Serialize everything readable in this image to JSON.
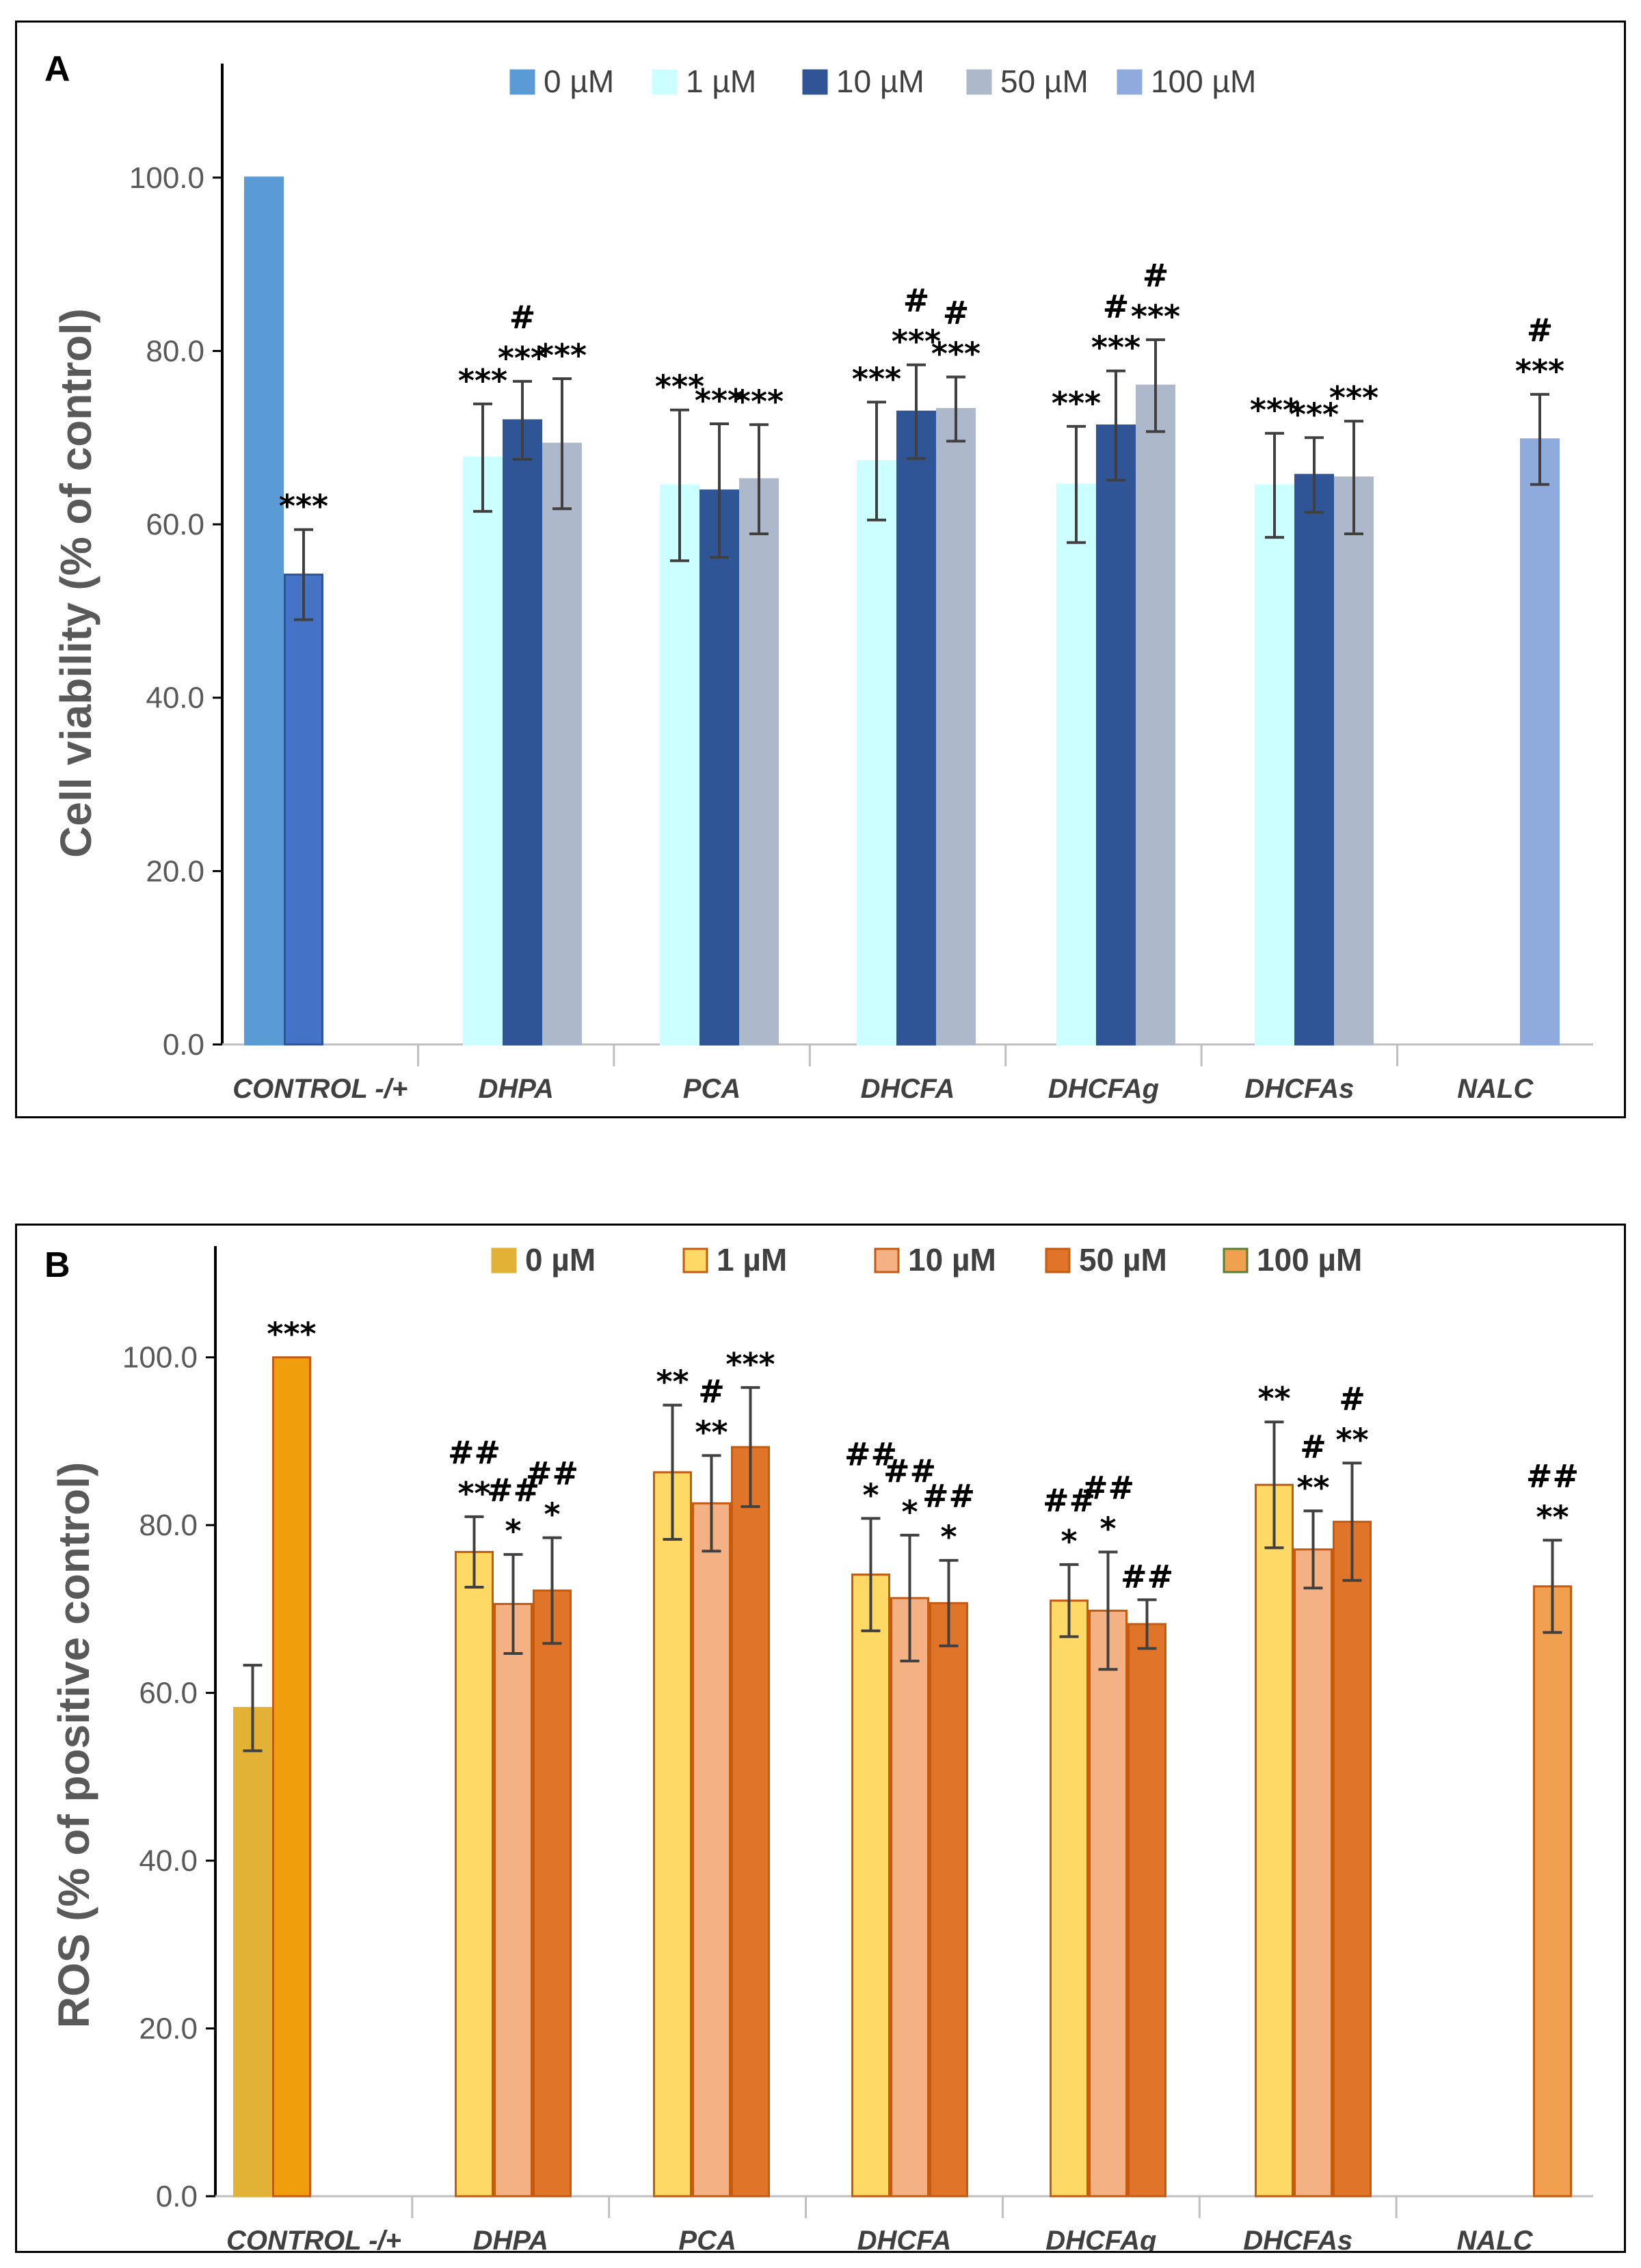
{
  "chart_data": [
    {
      "panel_label": "A",
      "type": "bar",
      "ylabel": "Cell viability (% of control)",
      "xlabel": "",
      "ylim": [
        0,
        110
      ],
      "yticks": [
        "0.0",
        "20.0",
        "40.0",
        "60.0",
        "80.0",
        "100.0"
      ],
      "legend": {
        "position": "top",
        "entries": [
          {
            "name": "0 µM",
            "color": "#5b9bd5"
          },
          {
            "name": "1 µM",
            "color": "#ccffff"
          },
          {
            "name": "10 µM",
            "color": "#2f5597"
          },
          {
            "name": "50 µM",
            "color": "#adb9ca"
          },
          {
            "name": "100 µM",
            "color": "#8faadc"
          }
        ]
      },
      "categories": [
        "CONTROL -/+",
        "DHPA",
        "PCA",
        "DHCFA",
        "DHCFAg",
        "DHCFAs",
        "NALC"
      ],
      "bars": [
        {
          "category": 0,
          "slot": 0,
          "value": 100.0,
          "error": 0,
          "fill": "#5b9bd5",
          "stroke": "#5b9bd5",
          "labels": []
        },
        {
          "category": 0,
          "slot": 1,
          "value": 54.2,
          "error": 5.2,
          "fill": "#4472c4",
          "stroke": "#2f5597",
          "labels": [
            "***"
          ]
        },
        {
          "category": 1,
          "slot": 0,
          "value": 67.7,
          "error": 6.2,
          "fill": "#ccffff",
          "stroke": "#ccffff",
          "labels": [
            "***"
          ]
        },
        {
          "category": 1,
          "slot": 1,
          "value": 72.0,
          "error": 4.5,
          "fill": "#2f5597",
          "stroke": "#2f5597",
          "labels": [
            "***",
            "#"
          ]
        },
        {
          "category": 1,
          "slot": 2,
          "value": 69.3,
          "error": 7.5,
          "fill": "#adb9ca",
          "stroke": "#adb9ca",
          "labels": [
            "***"
          ]
        },
        {
          "category": 2,
          "slot": 0,
          "value": 64.5,
          "error": 8.7,
          "fill": "#ccffff",
          "stroke": "#ccffff",
          "labels": [
            "***"
          ]
        },
        {
          "category": 2,
          "slot": 1,
          "value": 63.9,
          "error": 7.7,
          "fill": "#2f5597",
          "stroke": "#2f5597",
          "labels": [
            "***"
          ]
        },
        {
          "category": 2,
          "slot": 2,
          "value": 65.2,
          "error": 6.3,
          "fill": "#adb9ca",
          "stroke": "#adb9ca",
          "labels": [
            "***"
          ]
        },
        {
          "category": 3,
          "slot": 0,
          "value": 67.3,
          "error": 6.8,
          "fill": "#ccffff",
          "stroke": "#ccffff",
          "labels": [
            "***"
          ]
        },
        {
          "category": 3,
          "slot": 1,
          "value": 73.0,
          "error": 5.4,
          "fill": "#2f5597",
          "stroke": "#2f5597",
          "labels": [
            "***",
            "#"
          ]
        },
        {
          "category": 3,
          "slot": 2,
          "value": 73.3,
          "error": 3.7,
          "fill": "#adb9ca",
          "stroke": "#adb9ca",
          "labels": [
            "***",
            "#"
          ]
        },
        {
          "category": 4,
          "slot": 0,
          "value": 64.6,
          "error": 6.7,
          "fill": "#ccffff",
          "stroke": "#ccffff",
          "labels": [
            "***"
          ]
        },
        {
          "category": 4,
          "slot": 1,
          "value": 71.4,
          "error": 6.3,
          "fill": "#2f5597",
          "stroke": "#2f5597",
          "labels": [
            "***",
            "#"
          ]
        },
        {
          "category": 4,
          "slot": 2,
          "value": 76.0,
          "error": 5.3,
          "fill": "#adb9ca",
          "stroke": "#adb9ca",
          "labels": [
            "***",
            "#"
          ]
        },
        {
          "category": 5,
          "slot": 0,
          "value": 64.5,
          "error": 6.0,
          "fill": "#ccffff",
          "stroke": "#ccffff",
          "labels": [
            "***"
          ]
        },
        {
          "category": 5,
          "slot": 1,
          "value": 65.7,
          "error": 4.3,
          "fill": "#2f5597",
          "stroke": "#2f5597",
          "labels": [
            "***"
          ]
        },
        {
          "category": 5,
          "slot": 2,
          "value": 65.4,
          "error": 6.5,
          "fill": "#adb9ca",
          "stroke": "#adb9ca",
          "labels": [
            "***"
          ]
        },
        {
          "category": 6,
          "slot": 1,
          "value": 69.8,
          "error": 5.2,
          "fill": "#8faadc",
          "stroke": "#8faadc",
          "labels": [
            "***",
            "#"
          ]
        }
      ]
    },
    {
      "panel_label": "B",
      "type": "bar",
      "ylabel": "ROS (% of positive  control)",
      "xlabel": "",
      "ylim": [
        0,
        110
      ],
      "yticks": [
        "0.0",
        "20.0",
        "40.0",
        "60.0",
        "80.0",
        "100.0"
      ],
      "legend": {
        "position": "top",
        "entries": [
          {
            "name": "0 µM",
            "color": "#e2b236",
            "stroke": "#e2b236"
          },
          {
            "name": "1 µM",
            "color": "#ffd966",
            "stroke": "#c55a11"
          },
          {
            "name": "10 µM",
            "color": "#f4b183",
            "stroke": "#c55a11"
          },
          {
            "name": "50 µM",
            "color": "#e07428",
            "stroke": "#c55a11"
          },
          {
            "name": "100 µM",
            "color": "#f1a050",
            "stroke": "#548235"
          }
        ]
      },
      "categories": [
        "CONTROL -/+",
        "DHPA",
        "PCA",
        "DHCFA",
        "DHCFAg",
        "DHCFAs",
        "NALC"
      ],
      "bars": [
        {
          "category": 0,
          "slot": 0,
          "value": 58.2,
          "error": 5.1,
          "fill": "#e2b236",
          "stroke": "#e2b236",
          "labels": []
        },
        {
          "category": 0,
          "slot": 1,
          "value": 100.0,
          "error": 0,
          "fill": "#f09e0c",
          "stroke": "#c55a11",
          "labels": [
            "***"
          ]
        },
        {
          "category": 1,
          "slot": 0,
          "value": 76.8,
          "error": 4.2,
          "fill": "#ffd966",
          "stroke": "#c55a11",
          "labels": [
            "**",
            "##"
          ]
        },
        {
          "category": 1,
          "slot": 1,
          "value": 70.6,
          "error": 5.9,
          "fill": "#f4b183",
          "stroke": "#c55a11",
          "labels": [
            "*",
            "##"
          ]
        },
        {
          "category": 1,
          "slot": 2,
          "value": 72.2,
          "error": 6.3,
          "fill": "#e07428",
          "stroke": "#c55a11",
          "labels": [
            "*",
            "##"
          ]
        },
        {
          "category": 2,
          "slot": 0,
          "value": 86.3,
          "error": 8.0,
          "fill": "#ffd966",
          "stroke": "#c55a11",
          "labels": [
            "**"
          ]
        },
        {
          "category": 2,
          "slot": 1,
          "value": 82.6,
          "error": 5.7,
          "fill": "#f4b183",
          "stroke": "#c55a11",
          "labels": [
            "**",
            "#"
          ]
        },
        {
          "category": 2,
          "slot": 2,
          "value": 89.3,
          "error": 7.1,
          "fill": "#e07428",
          "stroke": "#c55a11",
          "labels": [
            "***"
          ]
        },
        {
          "category": 3,
          "slot": 0,
          "value": 74.1,
          "error": 6.7,
          "fill": "#ffd966",
          "stroke": "#c55a11",
          "labels": [
            "*",
            "##"
          ]
        },
        {
          "category": 3,
          "slot": 1,
          "value": 71.3,
          "error": 7.5,
          "fill": "#f4b183",
          "stroke": "#c55a11",
          "labels": [
            "*",
            "##"
          ]
        },
        {
          "category": 3,
          "slot": 2,
          "value": 70.7,
          "error": 5.1,
          "fill": "#e07428",
          "stroke": "#c55a11",
          "labels": [
            "*",
            "##"
          ]
        },
        {
          "category": 4,
          "slot": 0,
          "value": 71.0,
          "error": 4.3,
          "fill": "#ffd966",
          "stroke": "#c55a11",
          "labels": [
            "*",
            "##"
          ]
        },
        {
          "category": 4,
          "slot": 1,
          "value": 69.8,
          "error": 7.0,
          "fill": "#f4b183",
          "stroke": "#c55a11",
          "labels": [
            "*",
            "##"
          ]
        },
        {
          "category": 4,
          "slot": 2,
          "value": 68.2,
          "error": 2.9,
          "fill": "#e07428",
          "stroke": "#c55a11",
          "labels": [
            "##"
          ]
        },
        {
          "category": 5,
          "slot": 0,
          "value": 84.8,
          "error": 7.5,
          "fill": "#ffd966",
          "stroke": "#c55a11",
          "labels": [
            "**"
          ]
        },
        {
          "category": 5,
          "slot": 1,
          "value": 77.1,
          "error": 4.6,
          "fill": "#f4b183",
          "stroke": "#c55a11",
          "labels": [
            "**",
            "#"
          ]
        },
        {
          "category": 5,
          "slot": 2,
          "value": 80.4,
          "error": 7.0,
          "fill": "#e07428",
          "stroke": "#c55a11",
          "labels": [
            "**",
            "#"
          ]
        },
        {
          "category": 6,
          "slot": 1,
          "value": 72.7,
          "error": 5.5,
          "fill": "#f1a050",
          "stroke": "#c55a11",
          "labels": [
            "**",
            "##"
          ]
        }
      ]
    }
  ]
}
